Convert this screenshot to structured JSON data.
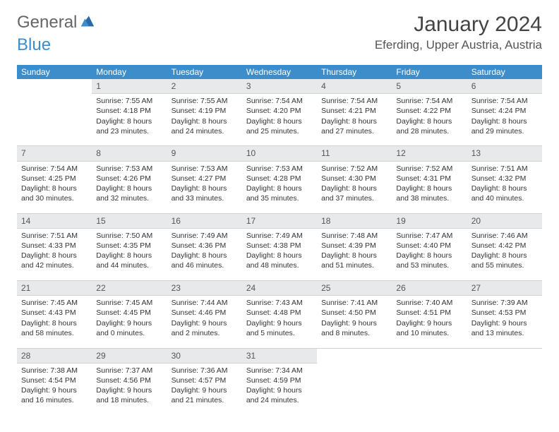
{
  "logo": {
    "text1": "General",
    "text2": "Blue"
  },
  "title": {
    "month": "January 2024",
    "location": "Eferding, Upper Austria, Austria"
  },
  "dow": [
    "Sunday",
    "Monday",
    "Tuesday",
    "Wednesday",
    "Thursday",
    "Friday",
    "Saturday"
  ],
  "colors": {
    "header_bg": "#3c8dc9",
    "header_fg": "#ffffff",
    "daynum_bg": "#e7e9ea",
    "body_bg": "#ffffff",
    "text": "#333333",
    "logo_gray": "#666666",
    "logo_blue": "#3c8dc9"
  },
  "weeks": [
    [
      null,
      {
        "n": "1",
        "sr": "Sunrise: 7:55 AM",
        "ss": "Sunset: 4:18 PM",
        "dl1": "Daylight: 8 hours",
        "dl2": "and 23 minutes."
      },
      {
        "n": "2",
        "sr": "Sunrise: 7:55 AM",
        "ss": "Sunset: 4:19 PM",
        "dl1": "Daylight: 8 hours",
        "dl2": "and 24 minutes."
      },
      {
        "n": "3",
        "sr": "Sunrise: 7:54 AM",
        "ss": "Sunset: 4:20 PM",
        "dl1": "Daylight: 8 hours",
        "dl2": "and 25 minutes."
      },
      {
        "n": "4",
        "sr": "Sunrise: 7:54 AM",
        "ss": "Sunset: 4:21 PM",
        "dl1": "Daylight: 8 hours",
        "dl2": "and 27 minutes."
      },
      {
        "n": "5",
        "sr": "Sunrise: 7:54 AM",
        "ss": "Sunset: 4:22 PM",
        "dl1": "Daylight: 8 hours",
        "dl2": "and 28 minutes."
      },
      {
        "n": "6",
        "sr": "Sunrise: 7:54 AM",
        "ss": "Sunset: 4:24 PM",
        "dl1": "Daylight: 8 hours",
        "dl2": "and 29 minutes."
      }
    ],
    [
      {
        "n": "7",
        "sr": "Sunrise: 7:54 AM",
        "ss": "Sunset: 4:25 PM",
        "dl1": "Daylight: 8 hours",
        "dl2": "and 30 minutes."
      },
      {
        "n": "8",
        "sr": "Sunrise: 7:53 AM",
        "ss": "Sunset: 4:26 PM",
        "dl1": "Daylight: 8 hours",
        "dl2": "and 32 minutes."
      },
      {
        "n": "9",
        "sr": "Sunrise: 7:53 AM",
        "ss": "Sunset: 4:27 PM",
        "dl1": "Daylight: 8 hours",
        "dl2": "and 33 minutes."
      },
      {
        "n": "10",
        "sr": "Sunrise: 7:53 AM",
        "ss": "Sunset: 4:28 PM",
        "dl1": "Daylight: 8 hours",
        "dl2": "and 35 minutes."
      },
      {
        "n": "11",
        "sr": "Sunrise: 7:52 AM",
        "ss": "Sunset: 4:30 PM",
        "dl1": "Daylight: 8 hours",
        "dl2": "and 37 minutes."
      },
      {
        "n": "12",
        "sr": "Sunrise: 7:52 AM",
        "ss": "Sunset: 4:31 PM",
        "dl1": "Daylight: 8 hours",
        "dl2": "and 38 minutes."
      },
      {
        "n": "13",
        "sr": "Sunrise: 7:51 AM",
        "ss": "Sunset: 4:32 PM",
        "dl1": "Daylight: 8 hours",
        "dl2": "and 40 minutes."
      }
    ],
    [
      {
        "n": "14",
        "sr": "Sunrise: 7:51 AM",
        "ss": "Sunset: 4:33 PM",
        "dl1": "Daylight: 8 hours",
        "dl2": "and 42 minutes."
      },
      {
        "n": "15",
        "sr": "Sunrise: 7:50 AM",
        "ss": "Sunset: 4:35 PM",
        "dl1": "Daylight: 8 hours",
        "dl2": "and 44 minutes."
      },
      {
        "n": "16",
        "sr": "Sunrise: 7:49 AM",
        "ss": "Sunset: 4:36 PM",
        "dl1": "Daylight: 8 hours",
        "dl2": "and 46 minutes."
      },
      {
        "n": "17",
        "sr": "Sunrise: 7:49 AM",
        "ss": "Sunset: 4:38 PM",
        "dl1": "Daylight: 8 hours",
        "dl2": "and 48 minutes."
      },
      {
        "n": "18",
        "sr": "Sunrise: 7:48 AM",
        "ss": "Sunset: 4:39 PM",
        "dl1": "Daylight: 8 hours",
        "dl2": "and 51 minutes."
      },
      {
        "n": "19",
        "sr": "Sunrise: 7:47 AM",
        "ss": "Sunset: 4:40 PM",
        "dl1": "Daylight: 8 hours",
        "dl2": "and 53 minutes."
      },
      {
        "n": "20",
        "sr": "Sunrise: 7:46 AM",
        "ss": "Sunset: 4:42 PM",
        "dl1": "Daylight: 8 hours",
        "dl2": "and 55 minutes."
      }
    ],
    [
      {
        "n": "21",
        "sr": "Sunrise: 7:45 AM",
        "ss": "Sunset: 4:43 PM",
        "dl1": "Daylight: 8 hours",
        "dl2": "and 58 minutes."
      },
      {
        "n": "22",
        "sr": "Sunrise: 7:45 AM",
        "ss": "Sunset: 4:45 PM",
        "dl1": "Daylight: 9 hours",
        "dl2": "and 0 minutes."
      },
      {
        "n": "23",
        "sr": "Sunrise: 7:44 AM",
        "ss": "Sunset: 4:46 PM",
        "dl1": "Daylight: 9 hours",
        "dl2": "and 2 minutes."
      },
      {
        "n": "24",
        "sr": "Sunrise: 7:43 AM",
        "ss": "Sunset: 4:48 PM",
        "dl1": "Daylight: 9 hours",
        "dl2": "and 5 minutes."
      },
      {
        "n": "25",
        "sr": "Sunrise: 7:41 AM",
        "ss": "Sunset: 4:50 PM",
        "dl1": "Daylight: 9 hours",
        "dl2": "and 8 minutes."
      },
      {
        "n": "26",
        "sr": "Sunrise: 7:40 AM",
        "ss": "Sunset: 4:51 PM",
        "dl1": "Daylight: 9 hours",
        "dl2": "and 10 minutes."
      },
      {
        "n": "27",
        "sr": "Sunrise: 7:39 AM",
        "ss": "Sunset: 4:53 PM",
        "dl1": "Daylight: 9 hours",
        "dl2": "and 13 minutes."
      }
    ],
    [
      {
        "n": "28",
        "sr": "Sunrise: 7:38 AM",
        "ss": "Sunset: 4:54 PM",
        "dl1": "Daylight: 9 hours",
        "dl2": "and 16 minutes."
      },
      {
        "n": "29",
        "sr": "Sunrise: 7:37 AM",
        "ss": "Sunset: 4:56 PM",
        "dl1": "Daylight: 9 hours",
        "dl2": "and 18 minutes."
      },
      {
        "n": "30",
        "sr": "Sunrise: 7:36 AM",
        "ss": "Sunset: 4:57 PM",
        "dl1": "Daylight: 9 hours",
        "dl2": "and 21 minutes."
      },
      {
        "n": "31",
        "sr": "Sunrise: 7:34 AM",
        "ss": "Sunset: 4:59 PM",
        "dl1": "Daylight: 9 hours",
        "dl2": "and 24 minutes."
      },
      null,
      null,
      null
    ]
  ]
}
